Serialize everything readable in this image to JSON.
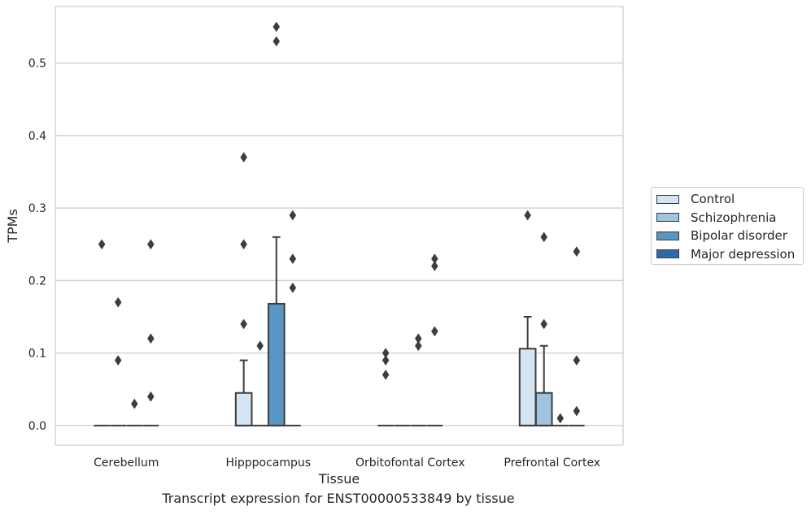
{
  "chart_data": {
    "type": "box",
    "xlabel": "Tissue",
    "ylabel": "TPMs",
    "caption": "Transcript expression for ENST00000533849 by tissue",
    "categories": [
      "Cerebellum",
      "Hipppocampus",
      "Orbitofontal Cortex",
      "Prefrontal Cortex"
    ],
    "yticks": [
      0.0,
      0.1,
      0.2,
      0.3,
      0.4,
      0.5
    ],
    "ytick_labels": [
      "0.0",
      "0.1",
      "0.2",
      "0.3",
      "0.4",
      "0.5"
    ],
    "ylim": [
      -0.027,
      0.578
    ],
    "grid": true,
    "legend_position": "right",
    "series": [
      {
        "name": "Control",
        "color": "#d5e5f3",
        "boxes": [
          {
            "q1": 0,
            "median": 0,
            "q3": 0,
            "whisker_low": 0,
            "whisker_high": 0,
            "outliers": [
              0.25
            ]
          },
          {
            "q1": 0,
            "median": 0,
            "q3": 0.045,
            "whisker_low": 0,
            "whisker_high": 0.09,
            "outliers": [
              0.37,
              0.25,
              0.14
            ]
          },
          {
            "q1": 0,
            "median": 0,
            "q3": 0,
            "whisker_low": 0,
            "whisker_high": 0,
            "outliers": [
              0.1,
              0.09,
              0.07
            ]
          },
          {
            "q1": 0,
            "median": 0,
            "q3": 0.106,
            "whisker_low": 0,
            "whisker_high": 0.15,
            "outliers": [
              0.29
            ]
          }
        ]
      },
      {
        "name": "Schizophrenia",
        "color": "#9ec4df",
        "boxes": [
          {
            "q1": 0,
            "median": 0,
            "q3": 0,
            "whisker_low": 0,
            "whisker_high": 0,
            "outliers": [
              0.17,
              0.09
            ]
          },
          {
            "q1": 0,
            "median": 0,
            "q3": 0,
            "whisker_low": 0,
            "whisker_high": 0,
            "outliers": [
              0.11
            ]
          },
          {
            "q1": 0,
            "median": 0,
            "q3": 0,
            "whisker_low": 0,
            "whisker_high": 0,
            "outliers": []
          },
          {
            "q1": 0,
            "median": 0,
            "q3": 0.045,
            "whisker_low": 0,
            "whisker_high": 0.11,
            "outliers": [
              0.26,
              0.14
            ]
          }
        ]
      },
      {
        "name": "Bipolar disorder",
        "color": "#5a96c3",
        "boxes": [
          {
            "q1": 0,
            "median": 0,
            "q3": 0,
            "whisker_low": 0,
            "whisker_high": 0,
            "outliers": [
              0.03
            ]
          },
          {
            "q1": 0,
            "median": 0,
            "q3": 0.168,
            "whisker_low": 0,
            "whisker_high": 0.26,
            "outliers": [
              0.55,
              0.53
            ]
          },
          {
            "q1": 0,
            "median": 0,
            "q3": 0,
            "whisker_low": 0,
            "whisker_high": 0,
            "outliers": [
              0.12,
              0.11
            ]
          },
          {
            "q1": 0,
            "median": 0,
            "q3": 0,
            "whisker_low": 0,
            "whisker_high": 0,
            "outliers": [
              0.01
            ]
          }
        ]
      },
      {
        "name": "Major depression",
        "color": "#2c6aa8",
        "boxes": [
          {
            "q1": 0,
            "median": 0,
            "q3": 0,
            "whisker_low": 0,
            "whisker_high": 0,
            "outliers": [
              0.25,
              0.12,
              0.04
            ]
          },
          {
            "q1": 0,
            "median": 0,
            "q3": 0,
            "whisker_low": 0,
            "whisker_high": 0,
            "outliers": [
              0.29,
              0.23,
              0.19
            ]
          },
          {
            "q1": 0,
            "median": 0,
            "q3": 0,
            "whisker_low": 0,
            "whisker_high": 0,
            "outliers": [
              0.23,
              0.22,
              0.13
            ]
          },
          {
            "q1": 0,
            "median": 0,
            "q3": 0,
            "whisker_low": 0,
            "whisker_high": 0,
            "outliers": [
              0.24,
              0.09,
              0.02
            ]
          }
        ]
      }
    ]
  }
}
